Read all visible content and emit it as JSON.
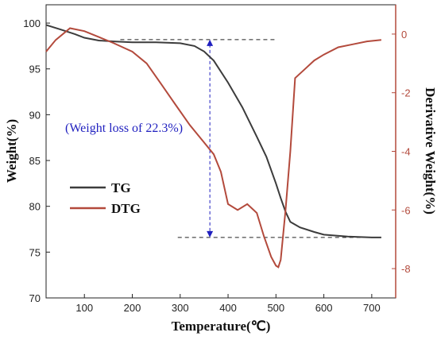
{
  "chart_data": {
    "type": "line",
    "title": "",
    "xlabel": "Temperature(℃)",
    "ylabel_left": "Weight(%)",
    "ylabel_right": "Derivative Weight(%)",
    "xlim": [
      20,
      750
    ],
    "ylim_left": [
      70,
      102
    ],
    "ylim_right": [
      -9,
      1
    ],
    "x_ticks": [
      100,
      200,
      300,
      400,
      500,
      600,
      700
    ],
    "y_left_ticks": [
      70,
      75,
      80,
      85,
      90,
      95,
      100
    ],
    "y_right_ticks": [
      0,
      -2,
      -4,
      -6,
      -8
    ],
    "grid": false,
    "legend_position": "center-left",
    "colors": {
      "tg": "#3c3c3c",
      "dtg": "#b34a3c",
      "annotation": "#1f1fbf",
      "reference": "#222222"
    },
    "series": [
      {
        "name": "TG",
        "axis": "left",
        "x": [
          20,
          50,
          80,
          100,
          130,
          160,
          200,
          250,
          300,
          330,
          350,
          370,
          400,
          430,
          460,
          480,
          500,
          510,
          520,
          530,
          550,
          580,
          600,
          650,
          700,
          720
        ],
        "y": [
          99.8,
          99.3,
          98.8,
          98.4,
          98.1,
          98.0,
          97.9,
          97.9,
          97.8,
          97.5,
          96.9,
          95.9,
          93.5,
          90.8,
          87.6,
          85.4,
          82.5,
          80.9,
          79.4,
          78.3,
          77.7,
          77.2,
          76.9,
          76.7,
          76.6,
          76.6
        ]
      },
      {
        "name": "DTG",
        "axis": "right",
        "x": [
          20,
          40,
          70,
          100,
          130,
          160,
          200,
          230,
          260,
          290,
          320,
          350,
          370,
          385,
          400,
          410,
          420,
          440,
          460,
          475,
          490,
          500,
          505,
          510,
          520,
          530,
          540,
          560,
          580,
          600,
          630,
          660,
          690,
          720
        ],
        "y": [
          -0.6,
          -0.2,
          0.2,
          0.1,
          -0.1,
          -0.3,
          -0.6,
          -1.0,
          -1.7,
          -2.4,
          -3.1,
          -3.7,
          -4.1,
          -4.7,
          -5.8,
          -5.9,
          -6.0,
          -5.8,
          -6.1,
          -6.9,
          -7.6,
          -7.9,
          -7.95,
          -7.7,
          -6.0,
          -4.0,
          -1.5,
          -1.2,
          -0.9,
          -0.7,
          -0.45,
          -0.35,
          -0.25,
          -0.2
        ]
      }
    ],
    "annotations": {
      "weight_loss_label": "(Weight loss of 22.3%)",
      "ref_upper_y": 98.2,
      "ref_lower_y": 76.6,
      "arrow_x": 362
    }
  }
}
